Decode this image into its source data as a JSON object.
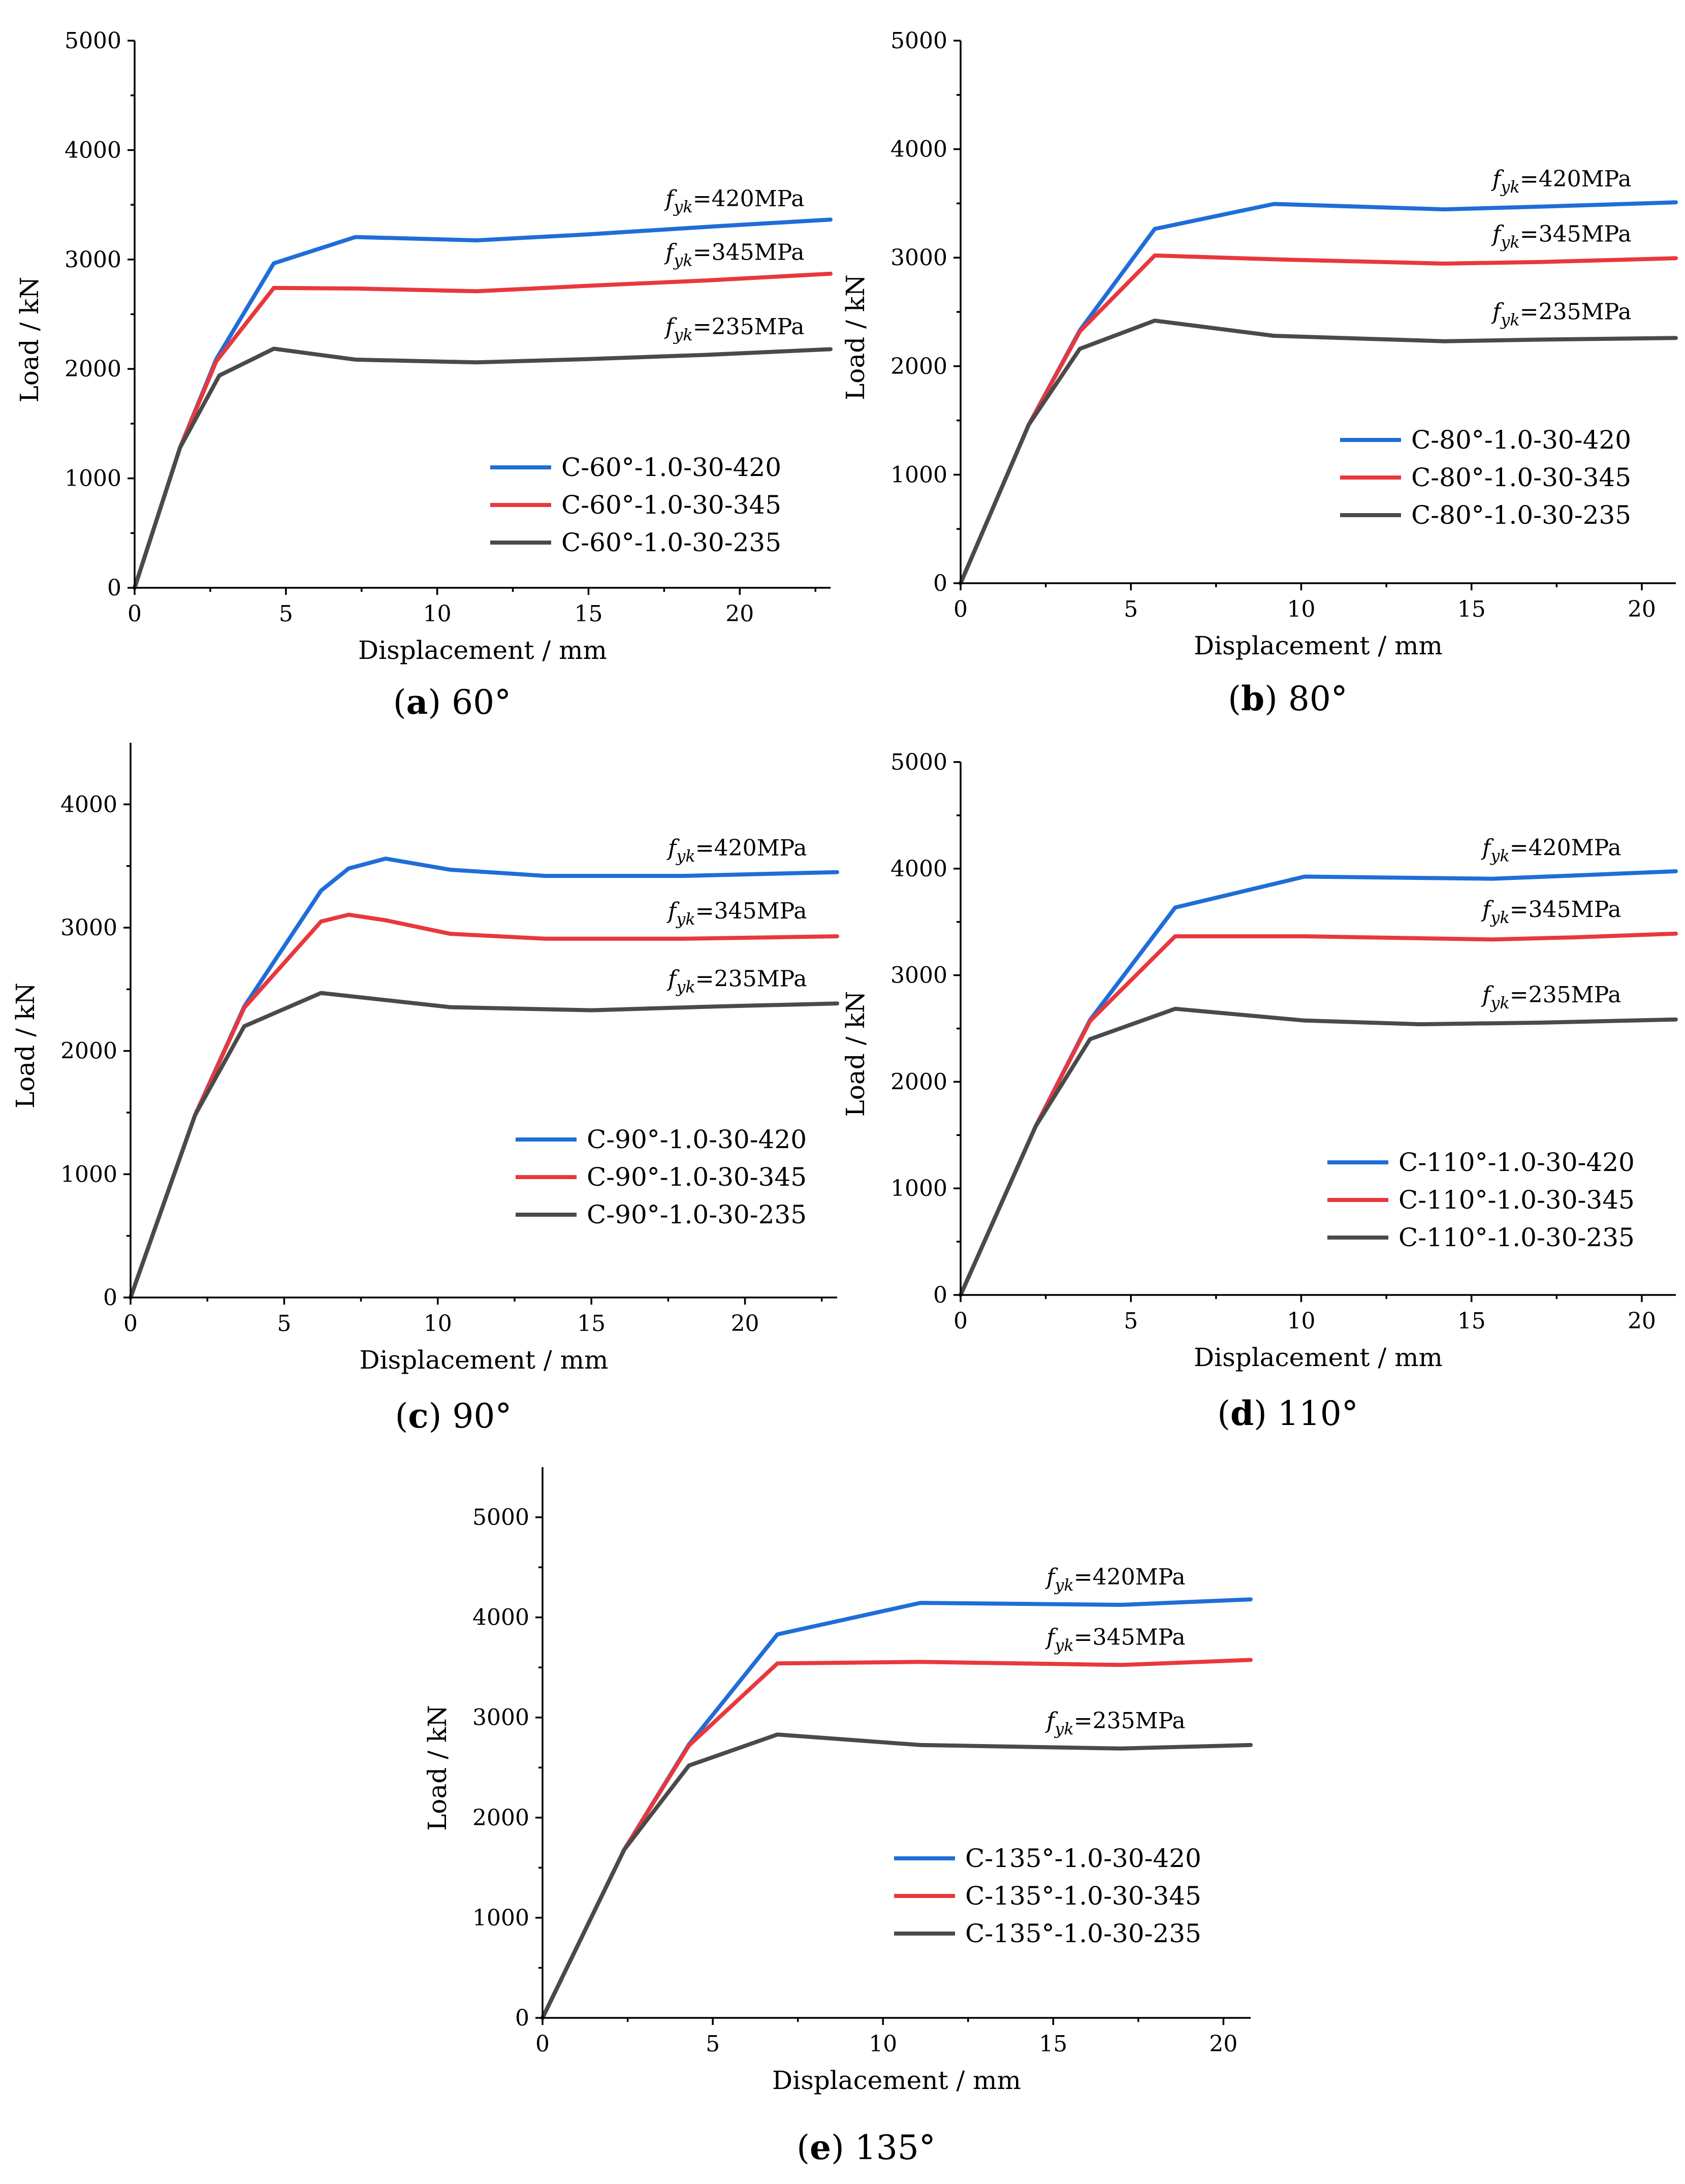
{
  "series_colors": [
    "#1f6dd8",
    "#e8383d",
    "#4a4a4a"
  ],
  "chart_data": [
    {
      "type": "line",
      "caption": {
        "open": "(",
        "letter": "a",
        "close": ")",
        "text": " 60°"
      },
      "xlabel": "Displacement / mm",
      "ylabel": "Load / kN",
      "xlim": [
        0,
        23
      ],
      "ylim": [
        0,
        5000
      ],
      "xticks": [
        0,
        5,
        10,
        15,
        20
      ],
      "yticks": [
        0,
        1000,
        2000,
        3000,
        4000,
        5000
      ],
      "grid": false,
      "legend_position": "lower-right",
      "series": [
        {
          "name": "C-60°-1.0-30-420",
          "annotation": {
            "f": "f",
            "sub": "yk",
            "val": "=420MPa"
          },
          "x": [
            0,
            1.5,
            2.7,
            4.6,
            7.3,
            11.3,
            15,
            19,
            23
          ],
          "y": [
            0,
            1280,
            2090,
            2965,
            3205,
            3175,
            3230,
            3300,
            3365
          ]
        },
        {
          "name": "C-60°-1.0-30-345",
          "annotation": {
            "f": "f",
            "sub": "yk",
            "val": "=345MPa"
          },
          "x": [
            0,
            1.5,
            2.7,
            4.6,
            7.3,
            11.3,
            15,
            19,
            23
          ],
          "y": [
            0,
            1280,
            2070,
            2740,
            2735,
            2710,
            2760,
            2810,
            2870
          ]
        },
        {
          "name": "C-60°-1.0-30-235",
          "annotation": {
            "f": "f",
            "sub": "yk",
            "val": "=235MPa"
          },
          "x": [
            0,
            1.5,
            2.8,
            4.6,
            7.3,
            11.3,
            15,
            19,
            23
          ],
          "y": [
            0,
            1280,
            1940,
            2185,
            2085,
            2060,
            2090,
            2130,
            2180
          ]
        }
      ]
    },
    {
      "type": "line",
      "caption": {
        "open": "(",
        "letter": "b",
        "close": ")",
        "text": " 80°"
      },
      "xlabel": "Displacement / mm",
      "ylabel": "Load / kN",
      "xlim": [
        0,
        21
      ],
      "ylim": [
        0,
        5000
      ],
      "xticks": [
        0,
        5,
        10,
        15,
        20
      ],
      "yticks": [
        0,
        1000,
        2000,
        3000,
        4000,
        5000
      ],
      "grid": false,
      "legend_position": "lower-right",
      "series": [
        {
          "name": "C-80°-1.0-30-420",
          "annotation": {
            "f": "f",
            "sub": "yk",
            "val": "=420MPa"
          },
          "x": [
            0,
            2,
            3.5,
            5.7,
            9.2,
            14.2,
            17,
            21
          ],
          "y": [
            0,
            1460,
            2330,
            3265,
            3495,
            3445,
            3470,
            3510
          ]
        },
        {
          "name": "C-80°-1.0-30-345",
          "annotation": {
            "f": "f",
            "sub": "yk",
            "val": "=345MPa"
          },
          "x": [
            0,
            2,
            3.5,
            5.7,
            9.2,
            14.2,
            17,
            21
          ],
          "y": [
            0,
            1460,
            2320,
            3020,
            2985,
            2945,
            2960,
            2995
          ]
        },
        {
          "name": "C-80°-1.0-30-235",
          "annotation": {
            "f": "f",
            "sub": "yk",
            "val": "=235MPa"
          },
          "x": [
            0,
            2,
            3.5,
            5.7,
            9.2,
            14.2,
            17,
            21
          ],
          "y": [
            0,
            1460,
            2160,
            2420,
            2280,
            2230,
            2245,
            2260
          ]
        }
      ]
    },
    {
      "type": "line",
      "caption": {
        "open": "(",
        "letter": "c",
        "close": ")",
        "text": " 90°"
      },
      "xlabel": "Displacement / mm",
      "ylabel": "Load / kN",
      "xlim": [
        0,
        23
      ],
      "ylim": [
        0,
        4500
      ],
      "xticks": [
        0,
        5,
        10,
        15,
        20
      ],
      "yticks": [
        0,
        1000,
        2000,
        3000,
        4000
      ],
      "grid": false,
      "legend_position": "lower-right",
      "series": [
        {
          "name": "C-90°-1.0-30-420",
          "annotation": {
            "f": "f",
            "sub": "yk",
            "val": "=420MPa"
          },
          "x": [
            0,
            2.1,
            3.7,
            6.2,
            7.1,
            8.3,
            10.4,
            13.5,
            18,
            23
          ],
          "y": [
            0,
            1480,
            2360,
            3300,
            3480,
            3560,
            3470,
            3420,
            3420,
            3450
          ]
        },
        {
          "name": "C-90°-1.0-30-345",
          "annotation": {
            "f": "f",
            "sub": "yk",
            "val": "=345MPa"
          },
          "x": [
            0,
            2.1,
            3.7,
            6.2,
            7.1,
            8.3,
            10.4,
            13.5,
            18,
            23
          ],
          "y": [
            0,
            1480,
            2350,
            3050,
            3105,
            3060,
            2950,
            2910,
            2910,
            2930
          ]
        },
        {
          "name": "C-90°-1.0-30-235",
          "annotation": {
            "f": "f",
            "sub": "yk",
            "val": "=235MPa"
          },
          "x": [
            0,
            2.1,
            3.7,
            6.2,
            10.4,
            15,
            19,
            23
          ],
          "y": [
            0,
            1480,
            2200,
            2470,
            2355,
            2330,
            2360,
            2385
          ]
        }
      ]
    },
    {
      "type": "line",
      "caption": {
        "open": "(",
        "letter": "d",
        "close": ")",
        "text": " 110°"
      },
      "xlabel": "Displacement / mm",
      "ylabel": "Load / kN",
      "xlim": [
        0,
        21
      ],
      "ylim": [
        0,
        5000
      ],
      "xticks": [
        0,
        5,
        10,
        15,
        20
      ],
      "yticks": [
        0,
        1000,
        2000,
        3000,
        4000,
        5000
      ],
      "grid": false,
      "legend_position": "lower-right",
      "series": [
        {
          "name": "C-110°-1.0-30-420",
          "annotation": {
            "f": "f",
            "sub": "yk",
            "val": "=420MPa"
          },
          "x": [
            0,
            2.2,
            3.8,
            6.3,
            10.1,
            15.6,
            18,
            21
          ],
          "y": [
            0,
            1580,
            2580,
            3635,
            3925,
            3905,
            3935,
            3975
          ]
        },
        {
          "name": "C-110°-1.0-30-345",
          "annotation": {
            "f": "f",
            "sub": "yk",
            "val": "=345MPa"
          },
          "x": [
            0,
            2.2,
            3.8,
            6.3,
            10.1,
            15.6,
            18,
            21
          ],
          "y": [
            0,
            1580,
            2570,
            3365,
            3365,
            3335,
            3355,
            3390
          ]
        },
        {
          "name": "C-110°-1.0-30-235",
          "annotation": {
            "f": "f",
            "sub": "yk",
            "val": "=235MPa"
          },
          "x": [
            0,
            2.2,
            3.8,
            6.3,
            10.1,
            13.5,
            17,
            21
          ],
          "y": [
            0,
            1580,
            2400,
            2685,
            2575,
            2540,
            2555,
            2585
          ]
        }
      ]
    },
    {
      "type": "line",
      "caption": {
        "open": "(",
        "letter": "e",
        "close": ")",
        "text": " 135°"
      },
      "xlabel": "Displacement / mm",
      "ylabel": "Load / kN",
      "xlim": [
        0,
        20.8
      ],
      "ylim": [
        0,
        5500
      ],
      "xticks": [
        0,
        5,
        10,
        15,
        20
      ],
      "yticks": [
        0,
        1000,
        2000,
        3000,
        4000,
        5000
      ],
      "grid": false,
      "legend_position": "lower-right",
      "series": [
        {
          "name": "C-135°-1.0-30-420",
          "annotation": {
            "f": "f",
            "sub": "yk",
            "val": "=420MPa"
          },
          "x": [
            0,
            2.4,
            4.3,
            6.9,
            11.1,
            17,
            20.8
          ],
          "y": [
            0,
            1680,
            2730,
            3830,
            4145,
            4125,
            4180
          ]
        },
        {
          "name": "C-135°-1.0-30-345",
          "annotation": {
            "f": "f",
            "sub": "yk",
            "val": "=345MPa"
          },
          "x": [
            0,
            2.4,
            4.3,
            6.9,
            11.1,
            17,
            20.8
          ],
          "y": [
            0,
            1680,
            2720,
            3540,
            3555,
            3525,
            3575
          ]
        },
        {
          "name": "C-135°-1.0-30-235",
          "annotation": {
            "f": "f",
            "sub": "yk",
            "val": "=235MPa"
          },
          "x": [
            0,
            2.4,
            4.3,
            6.9,
            11.1,
            17,
            20.8
          ],
          "y": [
            0,
            1680,
            2520,
            2830,
            2725,
            2690,
            2725
          ]
        }
      ]
    }
  ]
}
